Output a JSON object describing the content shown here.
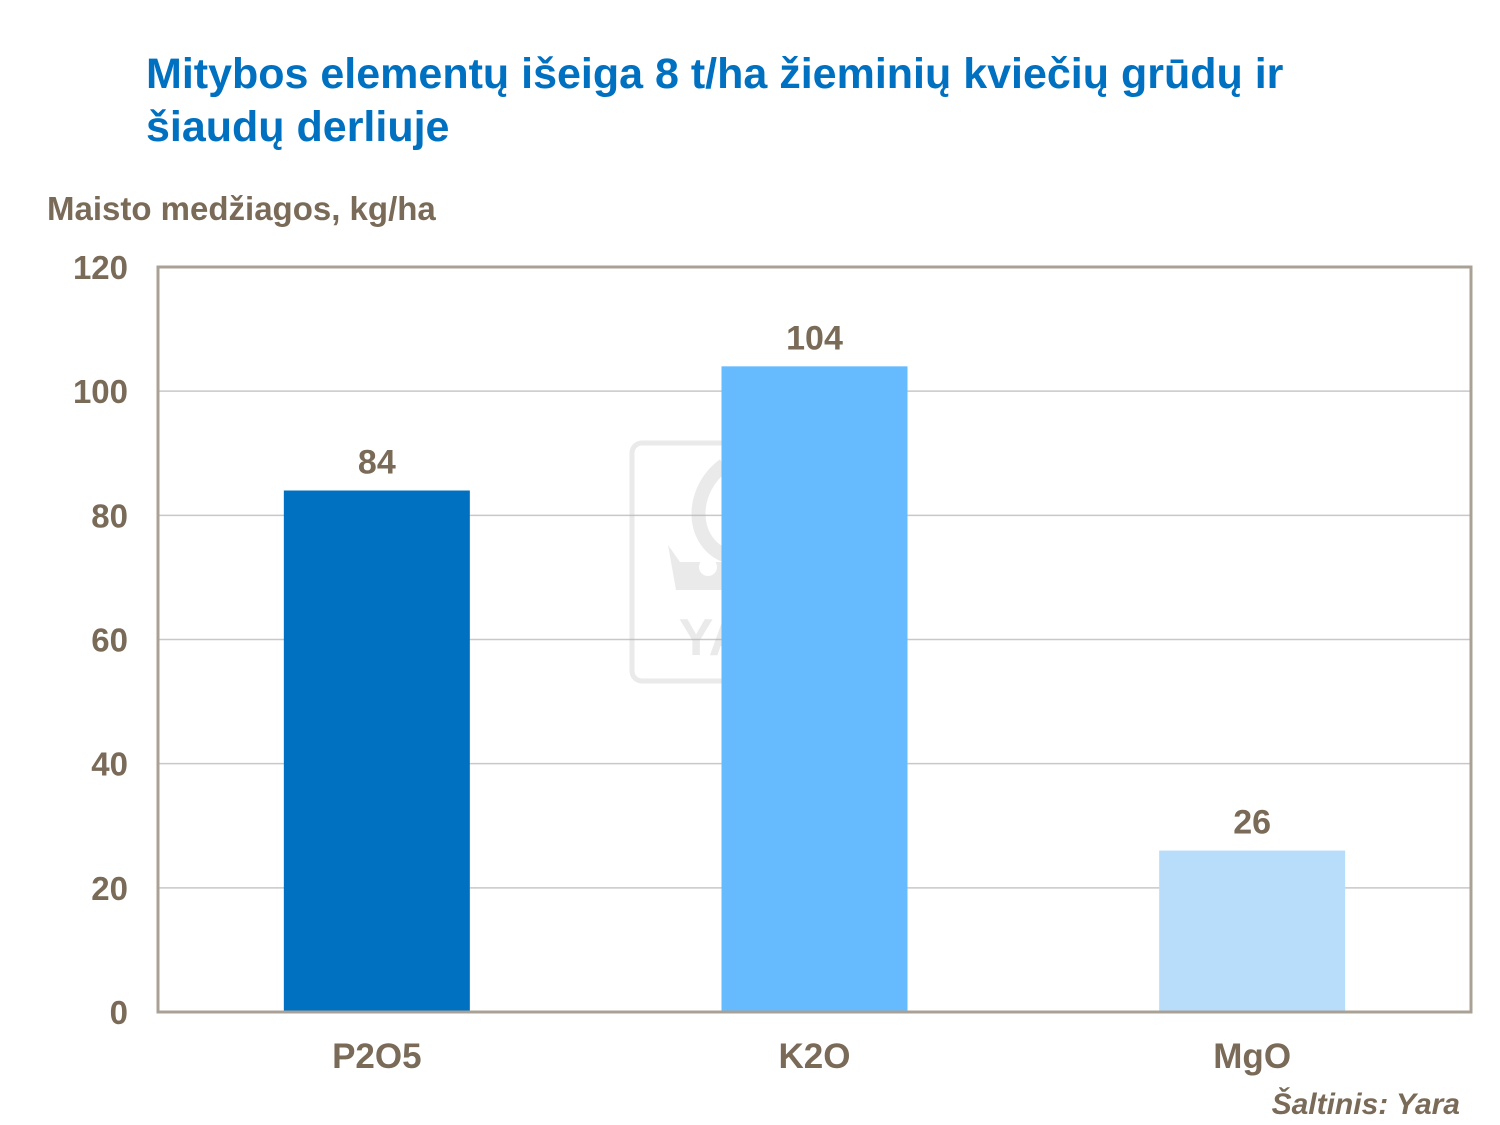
{
  "chart_data": {
    "type": "bar",
    "title": "Mitybos elementų išeiga 8 t/ha žieminių kviečių grūdų ir šiaudų derliuje",
    "ylabel": "Maisto medžiagos, kg/ha",
    "xlabel": "",
    "categories": [
      "P2O5",
      "K2O",
      "MgO"
    ],
    "values": [
      84,
      104,
      26
    ],
    "data_labels": [
      "84",
      "104",
      "26"
    ],
    "bar_colors": [
      "#0070c0",
      "#66bbff",
      "#b8ddfb"
    ],
    "ylim": [
      0,
      120
    ],
    "yticks": [
      "0",
      "20",
      "40",
      "60",
      "80",
      "100",
      "120"
    ],
    "grid": true,
    "legend": "none",
    "watermark": "YARA"
  },
  "source_note": "Šaltinis:  Yara",
  "colors": {
    "title": "#0070c0",
    "text": "#7a6a58",
    "grid": "#c8c8c8",
    "frame": "#a9a196"
  }
}
